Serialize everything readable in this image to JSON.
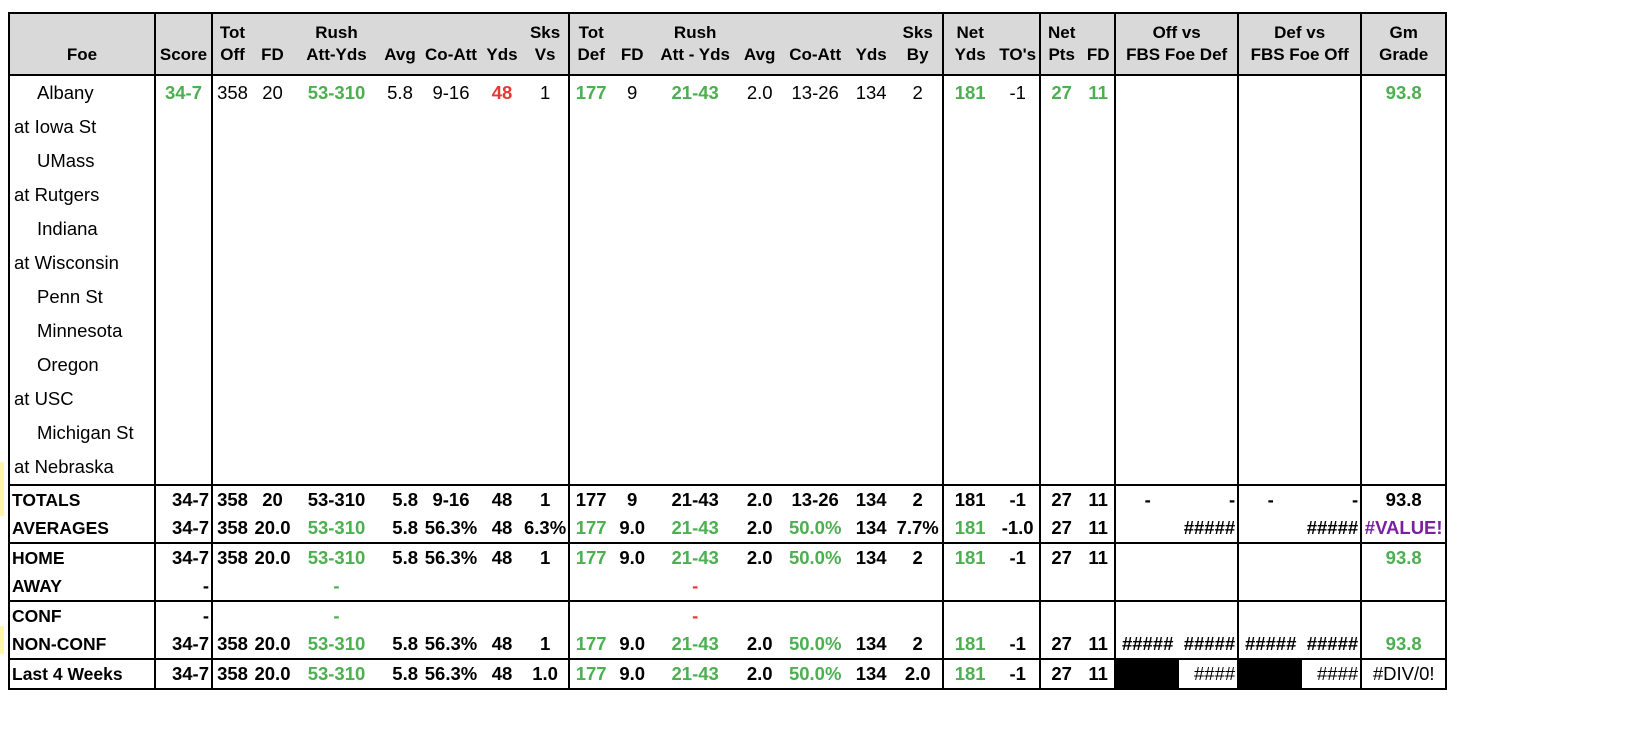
{
  "header": {
    "row1": [
      "",
      "",
      "Tot",
      "",
      "Rush",
      "",
      "",
      "",
      "Sks",
      "Tot",
      "",
      "Rush",
      "",
      "",
      "",
      "Sks",
      "Net",
      "",
      "Net",
      "",
      "Off vs",
      "Def vs",
      "Gm"
    ],
    "row2": [
      "Foe",
      "Score",
      "Off",
      "FD",
      "Att-Yds",
      "Avg",
      "Co-Att",
      "Yds",
      "Vs",
      "Def",
      "FD",
      "Att - Yds",
      "Avg",
      "Co-Att",
      "Yds",
      "By",
      "Yds",
      "TO's",
      "Pts",
      "FD",
      "FBS Foe Def",
      "FBS Foe Off",
      "Grade"
    ]
  },
  "games": [
    {
      "foe": "Albany",
      "away": false,
      "score": "34-7",
      "tot_off": "358",
      "fd": "20",
      "rush": "53-310",
      "avg": "5.8",
      "co_att": "9-16",
      "yds": "48",
      "sks_vs": "1",
      "tot_def": "177",
      "dfd": "9",
      "drush": "21-43",
      "davg": "2.0",
      "dco_att": "13-26",
      "dyds": "134",
      "sks_by": "2",
      "net_yds": "181",
      "to": "-1",
      "net_pts": "27",
      "net_fd": "11",
      "grade": "93.8"
    },
    {
      "foe": "at Iowa St",
      "away": true
    },
    {
      "foe": "UMass",
      "away": false
    },
    {
      "foe": "at Rutgers",
      "away": true
    },
    {
      "foe": "Indiana",
      "away": false
    },
    {
      "foe": "at Wisconsin",
      "away": true
    },
    {
      "foe": "Penn St",
      "away": false
    },
    {
      "foe": "Minnesota",
      "away": false
    },
    {
      "foe": "Oregon",
      "away": false
    },
    {
      "foe": "at USC",
      "away": true
    },
    {
      "foe": "Michigan St",
      "away": false
    },
    {
      "foe": "at Nebraska",
      "away": true
    }
  ],
  "summary": {
    "totals": {
      "label": "TOTALS",
      "score": "34-7",
      "tot_off": "358",
      "fd": "20",
      "rush": "53-310",
      "avg": "5.8",
      "co_att": "9-16",
      "yds": "48",
      "sks_vs": "1",
      "tot_def": "177",
      "dfd": "9",
      "drush": "21-43",
      "davg": "2.0",
      "dco_att": "13-26",
      "dyds": "134",
      "sks_by": "2",
      "net_yds": "181",
      "to": "-1",
      "net_pts": "27",
      "net_fd": "11",
      "off_a": "-",
      "off_b": "-",
      "def_a": "-",
      "def_b": "-",
      "grade": "93.8"
    },
    "averages": {
      "label": "AVERAGES",
      "score": "34-7",
      "tot_off": "358",
      "fd": "20.0",
      "rush": "53-310",
      "avg": "5.8",
      "co_att": "56.3%",
      "yds": "48",
      "sks_vs": "6.3%",
      "tot_def": "177",
      "dfd": "9.0",
      "drush": "21-43",
      "davg": "2.0",
      "dco_att": "50.0%",
      "dyds": "134",
      "sks_by": "7.7%",
      "net_yds": "181",
      "to": "-1.0",
      "net_pts": "27",
      "net_fd": "11",
      "off_b": "#####",
      "def_b": "#####",
      "grade": "#VALUE!"
    },
    "home": {
      "label": "HOME",
      "score": "34-7",
      "tot_off": "358",
      "fd": "20.0",
      "rush": "53-310",
      "avg": "5.8",
      "co_att": "56.3%",
      "yds": "48",
      "sks_vs": "1",
      "tot_def": "177",
      "dfd": "9.0",
      "drush": "21-43",
      "davg": "2.0",
      "dco_att": "50.0%",
      "dyds": "134",
      "sks_by": "2",
      "net_yds": "181",
      "to": "-1",
      "net_pts": "27",
      "net_fd": "11",
      "grade": "93.8"
    },
    "away": {
      "label": "AWAY",
      "score": "-",
      "rush": "-",
      "drush": "-"
    },
    "conf": {
      "label": "CONF",
      "score": "-",
      "rush": "-",
      "drush": "-"
    },
    "nonconf": {
      "label": "NON-CONF",
      "score": "34-7",
      "tot_off": "358",
      "fd": "20.0",
      "rush": "53-310",
      "avg": "5.8",
      "co_att": "56.3%",
      "yds": "48",
      "sks_vs": "1",
      "tot_def": "177",
      "dfd": "9.0",
      "drush": "21-43",
      "davg": "2.0",
      "dco_att": "50.0%",
      "dyds": "134",
      "sks_by": "2",
      "net_yds": "181",
      "to": "-1",
      "net_pts": "27",
      "net_fd": "11",
      "off_a": "#####",
      "off_b": "#####",
      "def_a": "#####",
      "def_b": "#####",
      "grade": "93.8"
    },
    "last4": {
      "label": "Last 4 Weeks",
      "score": "34-7",
      "tot_off": "358",
      "fd": "20.0",
      "rush": "53-310",
      "avg": "5.8",
      "co_att": "56.3%",
      "yds": "48",
      "sks_vs": "1.0",
      "tot_def": "177",
      "dfd": "9.0",
      "drush": "21-43",
      "davg": "2.0",
      "dco_att": "50.0%",
      "dyds": "134",
      "sks_by": "2.0",
      "net_yds": "181",
      "to": "-1",
      "net_pts": "27",
      "net_fd": "11",
      "off_b": "####",
      "def_b": "####",
      "grade": "#DIV/0!"
    }
  },
  "colors": {
    "good": "#4caf50",
    "bad": "#e53935",
    "error": "#7b1fa2",
    "header_bg": "#d9d9d9"
  }
}
